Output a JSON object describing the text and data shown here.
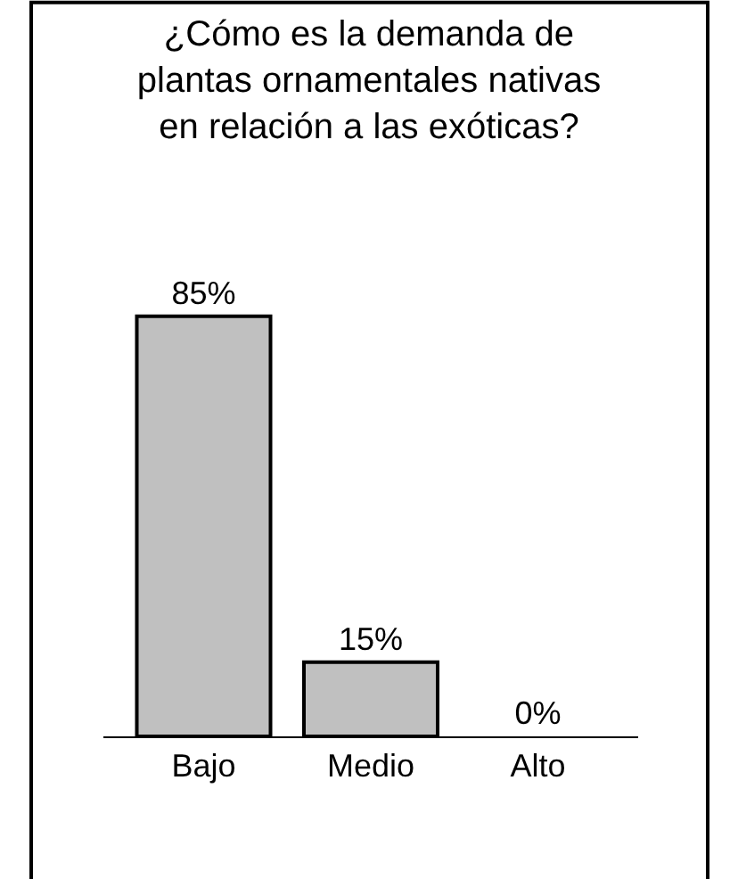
{
  "chart_data": {
    "type": "bar",
    "title": "¿Cómo es la demanda de\nplantas ornamentales nativas\nen relación a las exóticas?",
    "categories": [
      "Bajo",
      "Medio",
      "Alto"
    ],
    "values": [
      85,
      15,
      0
    ],
    "value_labels": [
      "85%",
      "15%",
      "0%"
    ],
    "color": "#c0c0c0",
    "tick_labels": "x"
  }
}
